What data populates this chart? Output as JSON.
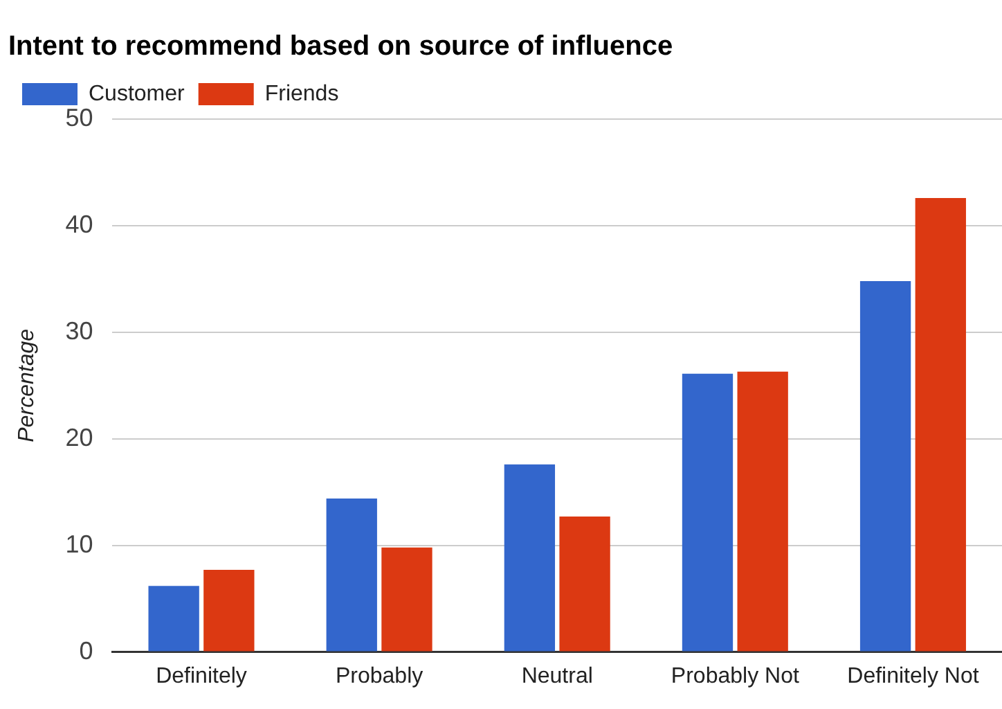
{
  "chart_data": {
    "type": "bar",
    "title": "Intent to recommend based on source of influence",
    "ylabel": "Percentage",
    "categories": [
      "Definitely",
      "Probably",
      "Neutral",
      "Probably Not",
      "Definitely Not"
    ],
    "series": [
      {
        "name": "Customer",
        "color": "#3366cc",
        "values": [
          6.2,
          14.4,
          17.6,
          26.1,
          34.8
        ]
      },
      {
        "name": "Friends",
        "color": "#dc3912",
        "values": [
          7.7,
          9.8,
          12.7,
          26.3,
          42.6
        ]
      }
    ],
    "ylim": [
      0,
      50
    ],
    "yticks": [
      0,
      10,
      20,
      30,
      40,
      50
    ],
    "grid": "y",
    "legend": "top left"
  }
}
